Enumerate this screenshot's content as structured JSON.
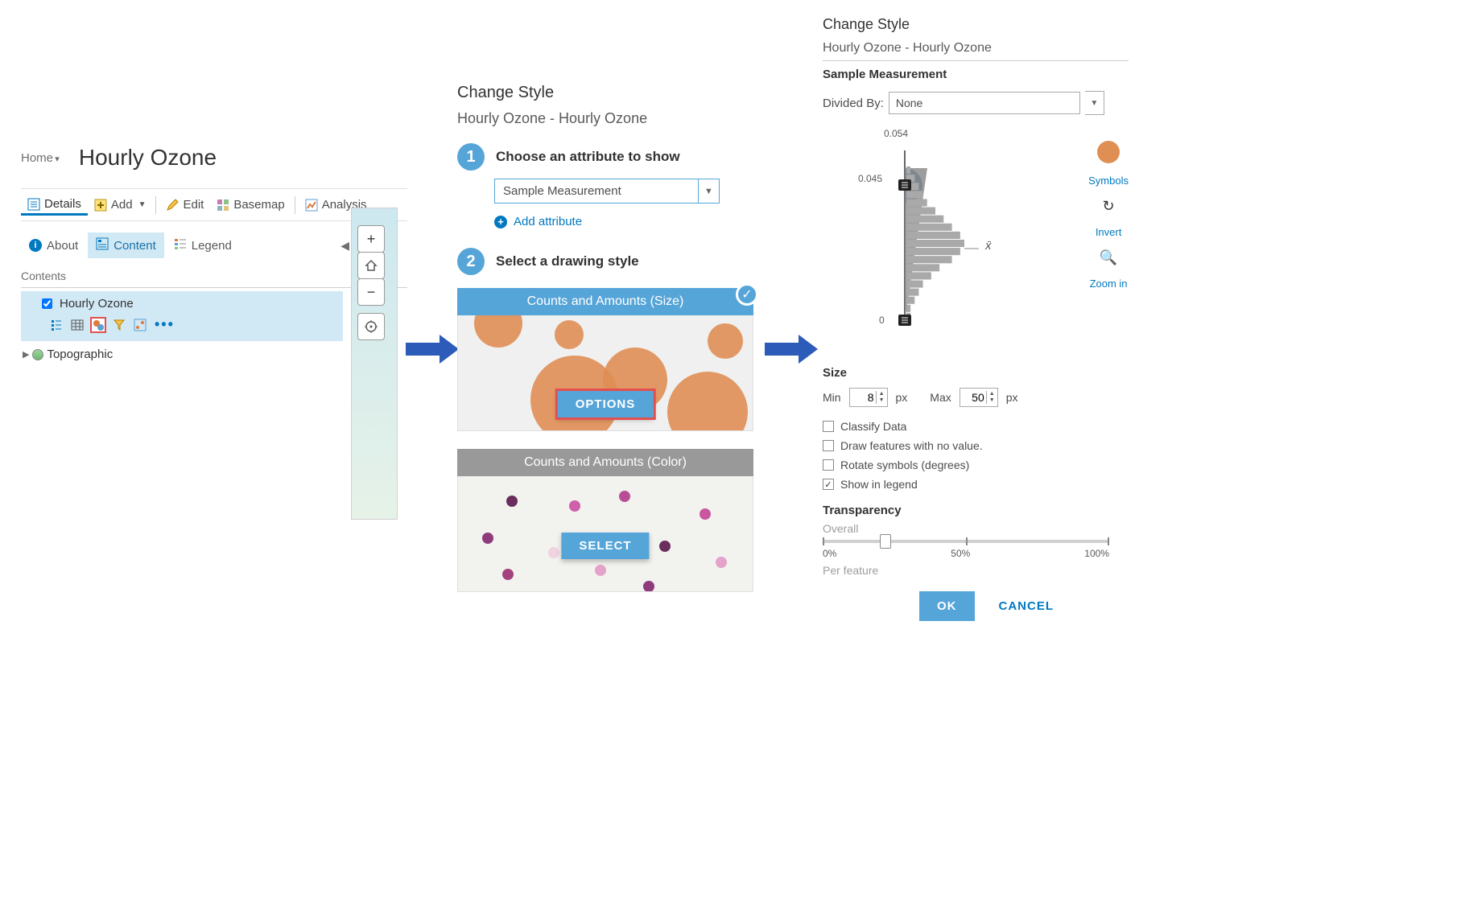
{
  "colors": {
    "accent": "#0079c1",
    "accent_fill": "#56a5d8",
    "highlight_red": "#e34f4f",
    "arrow_blue": "#2d5bb9",
    "bubble_orange": "#df8e54",
    "gray_header": "#999999",
    "panel_blue": "#d1e9f5"
  },
  "panel1": {
    "home": "Home",
    "title": "Hourly Ozone",
    "toolbar": {
      "details": "Details",
      "add": "Add",
      "edit": "Edit",
      "basemap": "Basemap",
      "analysis": "Analysis"
    },
    "subnav": {
      "about": "About",
      "content": "Content",
      "legend": "Legend"
    },
    "contents_label": "Contents",
    "layer": {
      "name": "Hourly Ozone",
      "checked": true
    },
    "basemap_layer": "Topographic"
  },
  "panel2": {
    "title": "Change Style",
    "subtitle": "Hourly Ozone - Hourly Ozone",
    "step1": "Choose an attribute to show",
    "attribute": "Sample Measurement",
    "add_attribute": "Add attribute",
    "step2": "Select a drawing style",
    "card1": {
      "header": "Counts and Amounts (Size)",
      "button": "OPTIONS",
      "selected": true
    },
    "card2": {
      "header": "Counts and Amounts (Color)",
      "button": "SELECT"
    }
  },
  "panel3": {
    "title": "Change Style",
    "subtitle": "Hourly Ozone - Hourly Ozone",
    "field": "Sample Measurement",
    "divided_by_label": "Divided By:",
    "divided_by_value": "None",
    "histogram": {
      "top_label": "0.054",
      "break_label": "0.045",
      "bottom_label": "0",
      "bins": [
        1,
        2,
        3,
        4,
        5,
        7,
        9,
        11,
        13,
        14,
        13,
        11,
        8,
        6,
        4,
        3,
        2,
        1,
        1
      ],
      "bar_color": "#a9a9a9",
      "axis_color": "#666666",
      "wedge_color": "#2f6f9f"
    },
    "side_tools": {
      "symbols": "Symbols",
      "invert": "Invert",
      "zoom": "Zoom in"
    },
    "xbar": "x̄",
    "size": {
      "label": "Size",
      "min_label": "Min",
      "min": "8",
      "max_label": "Max",
      "max": "50",
      "unit": "px"
    },
    "checks": {
      "classify": "Classify Data",
      "nofeat": "Draw features with no value.",
      "rotate": "Rotate symbols (degrees)",
      "legend": "Show in legend"
    },
    "transparency": {
      "label": "Transparency",
      "overall": "Overall",
      "ticks": [
        "0%",
        "50%",
        "100%"
      ],
      "value_pct": 22,
      "per_feature": "Per feature"
    },
    "ok": "OK",
    "cancel": "CANCEL"
  }
}
